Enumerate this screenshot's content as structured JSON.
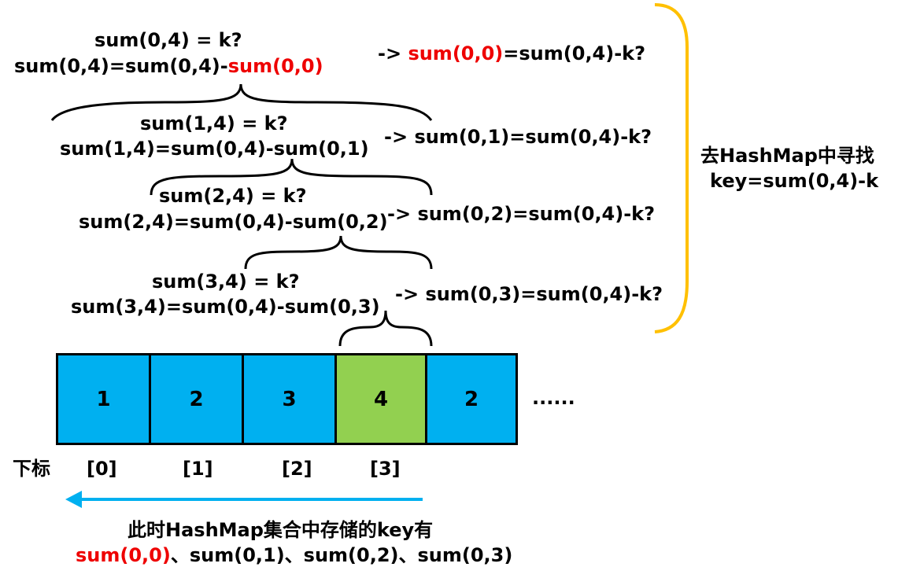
{
  "expressions": [
    {
      "eq": "sum(0,4) = k?",
      "expr_prefix": "sum(0,4)=sum(0,4)-",
      "expr_term": "sum(0,0)",
      "arrow_prefix": "-> ",
      "arrow_term": "sum(0,0)",
      "arrow_rest": "=sum(0,4)-k?"
    },
    {
      "eq": "sum(1,4) = k?",
      "expr_prefix": "sum(1,4)=sum(0,4)-",
      "expr_term": "sum(0,1)",
      "arrow_prefix": "-> ",
      "arrow_term": "sum(0,1)",
      "arrow_rest": "=sum(0,4)-k?"
    },
    {
      "eq": "sum(2,4) = k?",
      "expr_prefix": "sum(2,4)=sum(0,4)-",
      "expr_term": "sum(0,2)",
      "arrow_prefix": "-> ",
      "arrow_term": "sum(0,2)",
      "arrow_rest": "=sum(0,4)-k?"
    },
    {
      "eq": "sum(3,4) = k?",
      "expr_prefix": "sum(3,4)=sum(0,4)-",
      "expr_term": "sum(0,3)",
      "arrow_prefix": "-> ",
      "arrow_term": "sum(0,3)",
      "arrow_rest": "=sum(0,4)-k?"
    }
  ],
  "right_note": {
    "line1": "去HashMap中寻找",
    "line2": "key=sum(0,4)-k"
  },
  "array": {
    "cells": [
      {
        "value": "1",
        "color": "#00b0f0"
      },
      {
        "value": "2",
        "color": "#00b0f0"
      },
      {
        "value": "3",
        "color": "#00b0f0"
      },
      {
        "value": "4",
        "color": "#92d050"
      },
      {
        "value": "2",
        "color": "#00b0f0"
      }
    ],
    "ellipsis": "......",
    "index_label": "下标",
    "indices": [
      "[0]",
      "[1]",
      "[2]",
      "[3]"
    ]
  },
  "bottom_note": {
    "line1": "此时HashMap集合中存储的key有",
    "line2_red": "sum(0,0)",
    "line2_rest": "、sum(0,1)、sum(0,2)、sum(0,3)"
  },
  "colors": {
    "highlight": "#ee0000",
    "bracket": "#ffc000",
    "arrow": "#00b0f0",
    "cell_blue": "#00b0f0",
    "cell_green": "#92d050"
  }
}
